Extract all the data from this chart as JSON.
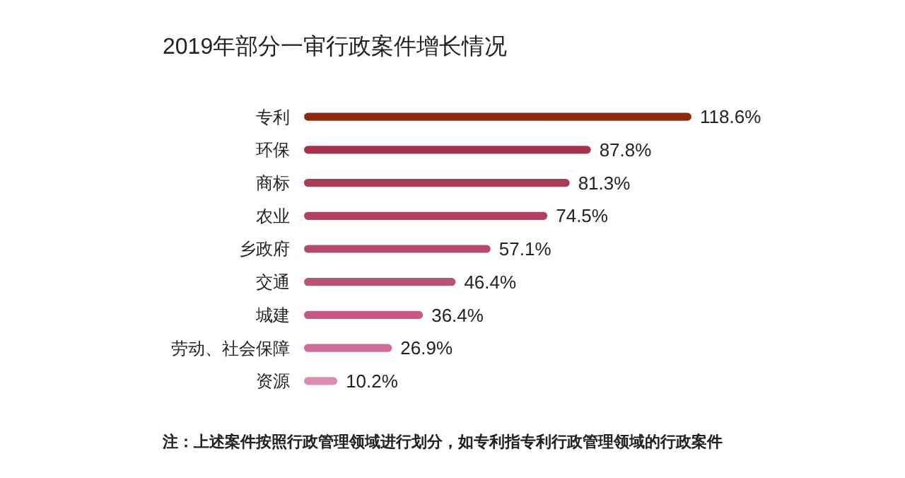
{
  "chart_data": {
    "type": "bar",
    "orientation": "horizontal",
    "title": "2019年部分一审行政案件增长情况",
    "categories": [
      "专利",
      "环保",
      "商标",
      "农业",
      "乡政府",
      "交通",
      "城建",
      "劳动、社会保障",
      "资源"
    ],
    "values": [
      118.6,
      87.8,
      81.3,
      74.5,
      57.1,
      46.4,
      36.4,
      26.9,
      10.2
    ],
    "value_labels": [
      "118.6%",
      "87.8%",
      "81.3%",
      "74.5%",
      "57.1%",
      "46.4%",
      "36.4%",
      "26.9%",
      "10.2%"
    ],
    "colors": [
      "#8b2a10",
      "#a8344a",
      "#ab3a57",
      "#b0405f",
      "#b64a6c",
      "#bc5077",
      "#c45a84",
      "#cf6c96",
      "#dc8cb0"
    ],
    "annotations": [
      "注：上述案件按照行政管理领域进行划分，如专利指专利行政管理领域的行政案件"
    ],
    "grid": false
  }
}
